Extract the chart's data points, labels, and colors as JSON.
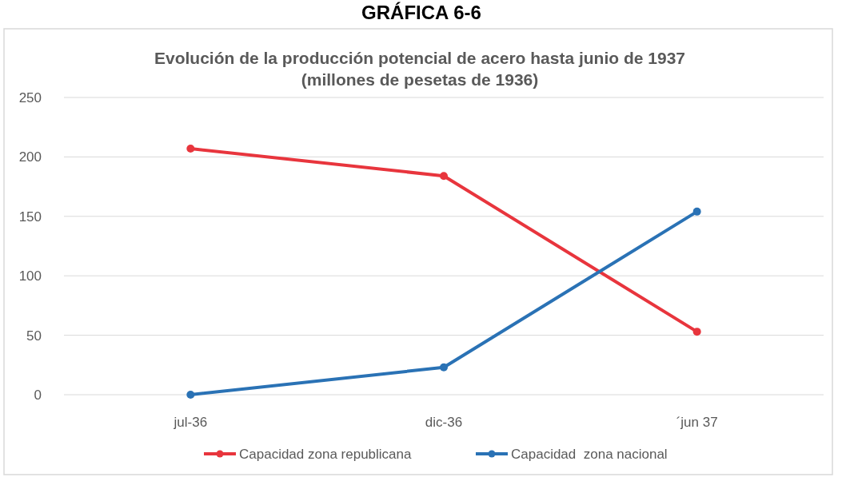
{
  "chart_data": {
    "type": "line",
    "title": "Evolución de la producción potencial de acero hasta junio de 1937",
    "subtitle": "(millones de pesetas de 1936)",
    "annotations": [
      "GRÁFICA 6-6"
    ],
    "categories": [
      "jul-36",
      "dic-36",
      "´jun 37"
    ],
    "series": [
      {
        "name": "Capacidad zona republicana",
        "color": "#e8353d",
        "values": [
          207,
          184,
          53
        ]
      },
      {
        "name": "Capacidad  zona nacional",
        "color": "#2a72b5",
        "values": [
          0,
          23,
          154
        ]
      }
    ],
    "ylim": [
      0,
      250
    ],
    "yticks": [
      0,
      50,
      100,
      150,
      200,
      250
    ],
    "grid": "y",
    "legend": "bottom",
    "marker": "circle",
    "line_style": "solid"
  }
}
